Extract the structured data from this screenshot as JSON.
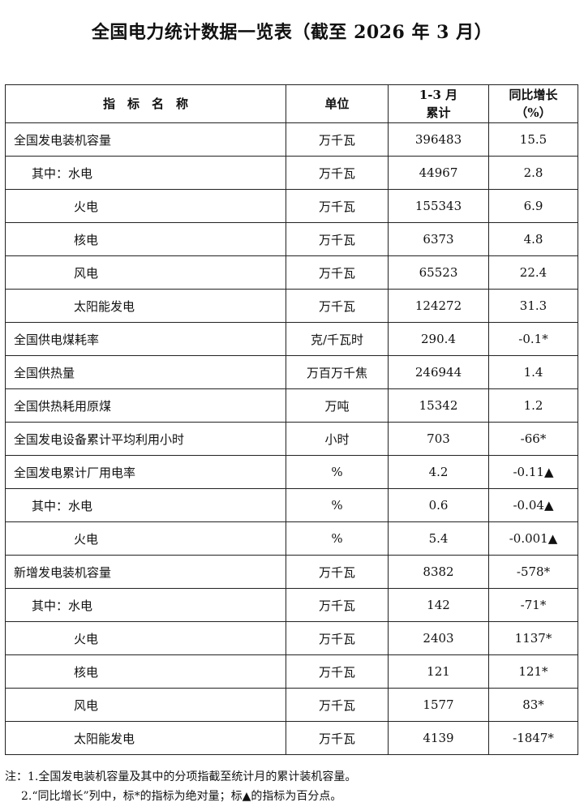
{
  "title": "全国电力统计数据一览表（截至 2026 年 3 月）",
  "table": {
    "headers": {
      "name": "指　标　名　称",
      "unit": "单位",
      "cumulative_line1": "1-3 月",
      "cumulative_line2": "累计",
      "growth_line1": "同比增长",
      "growth_line2": "（%）"
    },
    "rows": [
      {
        "name": "全国发电装机容量",
        "level": 0,
        "unit": "万千瓦",
        "value": "396483",
        "growth": "15.5"
      },
      {
        "name": "其中：水电",
        "level": 1,
        "unit": "万千瓦",
        "value": "44967",
        "growth": "2.8"
      },
      {
        "name": "火电",
        "level": 2,
        "unit": "万千瓦",
        "value": "155343",
        "growth": "6.9"
      },
      {
        "name": "核电",
        "level": 2,
        "unit": "万千瓦",
        "value": "6373",
        "growth": "4.8"
      },
      {
        "name": "风电",
        "level": 2,
        "unit": "万千瓦",
        "value": "65523",
        "growth": "22.4"
      },
      {
        "name": "太阳能发电",
        "level": 2,
        "unit": "万千瓦",
        "value": "124272",
        "growth": "31.3"
      },
      {
        "name": "全国供电煤耗率",
        "level": 0,
        "unit": "克/千瓦时",
        "value": "290.4",
        "growth": "-0.1*"
      },
      {
        "name": "全国供热量",
        "level": 0,
        "unit": "万百万千焦",
        "value": "246944",
        "growth": "1.4"
      },
      {
        "name": "全国供热耗用原煤",
        "level": 0,
        "unit": "万吨",
        "value": "15342",
        "growth": "1.2"
      },
      {
        "name": "全国发电设备累计平均利用小时",
        "level": 0,
        "unit": "小时",
        "value": "703",
        "growth": "-66*"
      },
      {
        "name": "全国发电累计厂用电率",
        "level": 0,
        "unit": "%",
        "value": "4.2",
        "growth": "-0.11▲"
      },
      {
        "name": "其中：水电",
        "level": 1,
        "unit": "%",
        "value": "0.6",
        "growth": "-0.04▲"
      },
      {
        "name": "火电",
        "level": 2,
        "unit": "%",
        "value": "5.4",
        "growth": "-0.001▲"
      },
      {
        "name": "新增发电装机容量",
        "level": 0,
        "unit": "万千瓦",
        "value": "8382",
        "growth": "-578*"
      },
      {
        "name": "其中：水电",
        "level": 1,
        "unit": "万千瓦",
        "value": "142",
        "growth": "-71*"
      },
      {
        "name": "火电",
        "level": 2,
        "unit": "万千瓦",
        "value": "2403",
        "growth": "1137*"
      },
      {
        "name": "核电",
        "level": 2,
        "unit": "万千瓦",
        "value": "121",
        "growth": "121*"
      },
      {
        "name": "风电",
        "level": 2,
        "unit": "万千瓦",
        "value": "1577",
        "growth": "83*"
      },
      {
        "name": "太阳能发电",
        "level": 2,
        "unit": "万千瓦",
        "value": "4139",
        "growth": "-1847*"
      }
    ]
  },
  "notes": [
    "注：1.全国发电装机容量及其中的分项指截至统计月的累计装机容量。",
    "2.“同比增长”列中，标*的指标为绝对量；标▲的指标为百分点。"
  ]
}
